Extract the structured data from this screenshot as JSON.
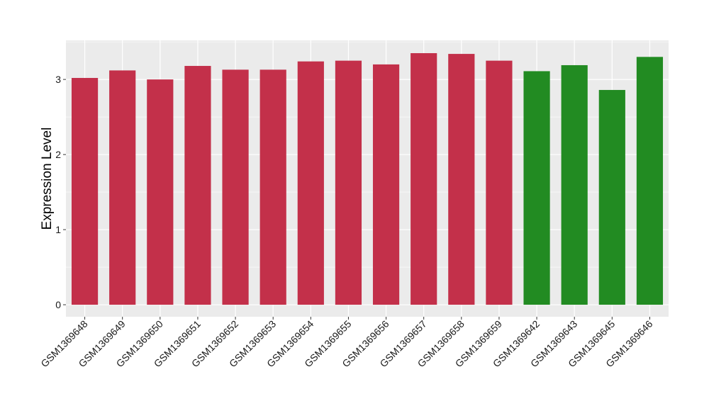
{
  "chart_data": {
    "type": "bar",
    "title": "",
    "xlabel": "",
    "ylabel": "Expression Level",
    "categories": [
      "GSM1369648",
      "GSM1369649",
      "GSM1369650",
      "GSM1369651",
      "GSM1369652",
      "GSM1369653",
      "GSM1369654",
      "GSM1369655",
      "GSM1369656",
      "GSM1369657",
      "GSM1369658",
      "GSM1369659",
      "GSM1369642",
      "GSM1369643",
      "GSM1369645",
      "GSM1369646"
    ],
    "values": [
      3.02,
      3.12,
      3.0,
      3.18,
      3.13,
      3.13,
      3.24,
      3.25,
      3.2,
      3.35,
      3.34,
      3.25,
      3.11,
      3.19,
      2.86,
      3.3
    ],
    "bar_colors": [
      "#C3304A",
      "#C3304A",
      "#C3304A",
      "#C3304A",
      "#C3304A",
      "#C3304A",
      "#C3304A",
      "#C3304A",
      "#C3304A",
      "#C3304A",
      "#C3304A",
      "#C3304A",
      "#228B22",
      "#228B22",
      "#228B22",
      "#228B22"
    ],
    "yticks": [
      0,
      1,
      2,
      3
    ],
    "ylim": [
      -0.16,
      3.52
    ],
    "grid": true,
    "panel_background": "#EBEBEB",
    "grid_color": "#FFFFFF",
    "legend": "none"
  }
}
